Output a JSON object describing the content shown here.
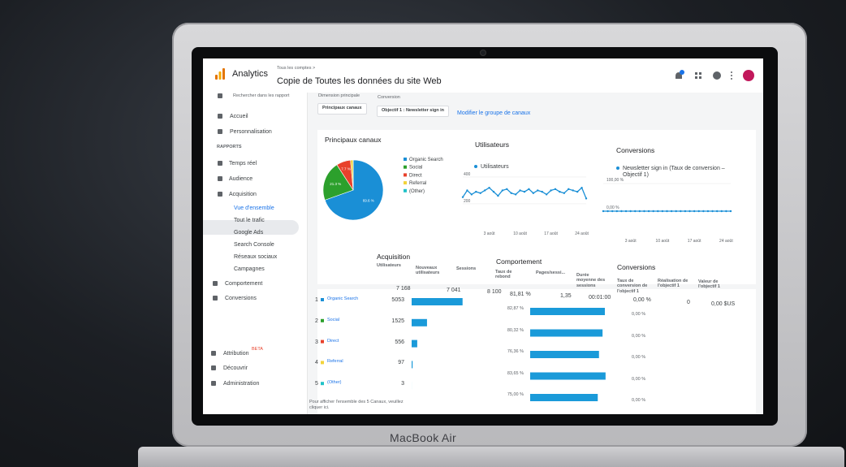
{
  "header": {
    "app_name": "Analytics",
    "breadcrumb": "Tous les comptes >",
    "title": "Copie de Toutes les données du site Web"
  },
  "sidebar": {
    "search_placeholder": "Rechercher dans les rapport",
    "items": [
      "Accueil",
      "Personnalisation"
    ],
    "section": "RAPPORTS",
    "reports": [
      "Temps réel",
      "Audience",
      "Acquisition"
    ],
    "acquisition_sub": [
      "Vue d'ensemble",
      "Tout le trafic",
      "Google Ads",
      "Search Console",
      "Réseaux sociaux",
      "Campagnes"
    ],
    "more_reports": [
      "Comportement",
      "Conversions"
    ],
    "footer": [
      "Attribution",
      "Découvrir",
      "Administration"
    ],
    "beta": "BETA"
  },
  "filters": {
    "dimension_label": "Dimension principale",
    "dimension_value": "Principaux canaux",
    "conversion_label": "Conversion",
    "conversion_value": "Objectif 1 : Newsletter sign in",
    "modify_link": "Modifier le groupe de canaux"
  },
  "channels_chart": {
    "type": "pie",
    "title": "Principaux canaux",
    "slices": [
      {
        "name": "Organic Search",
        "color": "#1a8fd6",
        "value": 69.6,
        "label": "69.6 %"
      },
      {
        "name": "Social",
        "color": "#2ca02c",
        "value": 21.3,
        "label": "21.3 %"
      },
      {
        "name": "Direct",
        "color": "#e8412b",
        "value": 7.7,
        "label": "7.7 %"
      },
      {
        "name": "Referral",
        "color": "#f2d33a",
        "value": 1.4
      },
      {
        "name": "(Other)",
        "color": "#21c2c8",
        "value": 0.04
      }
    ]
  },
  "users_chart": {
    "type": "line",
    "title": "Utilisateurs",
    "legend": "Utilisateurs",
    "color": "#1a8fd6",
    "categories": [
      null,
      null,
      null,
      null,
      null,
      null,
      "3 août",
      null,
      null,
      null,
      null,
      null,
      null,
      "10 août",
      null,
      null,
      null,
      null,
      null,
      null,
      "17 août",
      null,
      null,
      null,
      null,
      null,
      null,
      "24 août",
      null
    ],
    "values": [
      250,
      300,
      270,
      290,
      280,
      300,
      320,
      290,
      260,
      300,
      310,
      280,
      270,
      300,
      290,
      310,
      280,
      300,
      290,
      270,
      300,
      310,
      290,
      280,
      310,
      300,
      290,
      320,
      240
    ],
    "ylim": [
      0,
      430
    ],
    "yticks": [
      200,
      400
    ]
  },
  "conversions_chart": {
    "type": "line",
    "title": "Conversions",
    "legend": "Newsletter sign in (Taux de conversion – Objectif 1)",
    "color": "#1a8fd6",
    "categories": [
      null,
      null,
      null,
      null,
      null,
      null,
      "3 août",
      null,
      null,
      null,
      null,
      null,
      null,
      "10 août",
      null,
      null,
      null,
      null,
      null,
      null,
      "17 août",
      null,
      null,
      null,
      null,
      null,
      null,
      "24 août",
      null
    ],
    "values": [
      0,
      0,
      0,
      0,
      0,
      0,
      0,
      0,
      0,
      0,
      0,
      0,
      0,
      0,
      0,
      0,
      0,
      0,
      0,
      0,
      0,
      0,
      0,
      0,
      0,
      0,
      0,
      0,
      0
    ],
    "ylim": [
      0,
      100
    ],
    "yticks": [
      {
        "value": 0,
        "label": "0,00 %"
      },
      {
        "value": 100,
        "label": "100,00 %"
      }
    ]
  },
  "table": {
    "acquisition": "Acquisition",
    "behavior": "Comportement",
    "conversions": "Conversions",
    "columns": [
      "Utilisateurs",
      "Nouveaux utilisateurs",
      "Sessions",
      "Taux de rebond",
      "Pages/sessi...",
      "Durée moyenne des sessions",
      "Taux de conversion de l'objectif 1",
      "Réalisation de l'objectif 1",
      "Valeur de l'objectif 1"
    ],
    "totals": {
      "users": 7168,
      "users_label": "7 168",
      "new_users": "7 041",
      "sessions": "8 100",
      "bounce": "81,81 %",
      "pages": "1,35",
      "duration": "00:01:00",
      "conv_rate": "0,00 %",
      "completions": "0",
      "value": "0,00 $US"
    },
    "rows": [
      {
        "rank": "1",
        "channel": "Organic Search",
        "users": 5053,
        "bounce_rate": 82.87,
        "bounce_label": "82,87 %",
        "conversion_rate": "0,00 %"
      },
      {
        "rank": "2",
        "channel": "Social",
        "users": 1525,
        "bounce_rate": 80.32,
        "bounce_label": "80,32 %",
        "conversion_rate": "0,00 %"
      },
      {
        "rank": "3",
        "channel": "Direct",
        "users": 556,
        "bounce_rate": 76.36,
        "bounce_label": "76,36 %",
        "conversion_rate": "0,00 %"
      },
      {
        "rank": "4",
        "channel": "Referral",
        "users": 97,
        "bounce_rate": 83.65,
        "bounce_label": "83,65 %",
        "conversion_rate": "0,00 %"
      },
      {
        "rank": "5",
        "channel": "(Other)",
        "users": 3,
        "bounce_rate": 75.0,
        "bounce_label": "75,00 %",
        "conversion_rate": "0,00 %"
      }
    ],
    "footnote": "Pour afficher l'ensemble des 5 Canaux, veuillez cliquer ici."
  },
  "device": {
    "label": "MacBook Air"
  }
}
